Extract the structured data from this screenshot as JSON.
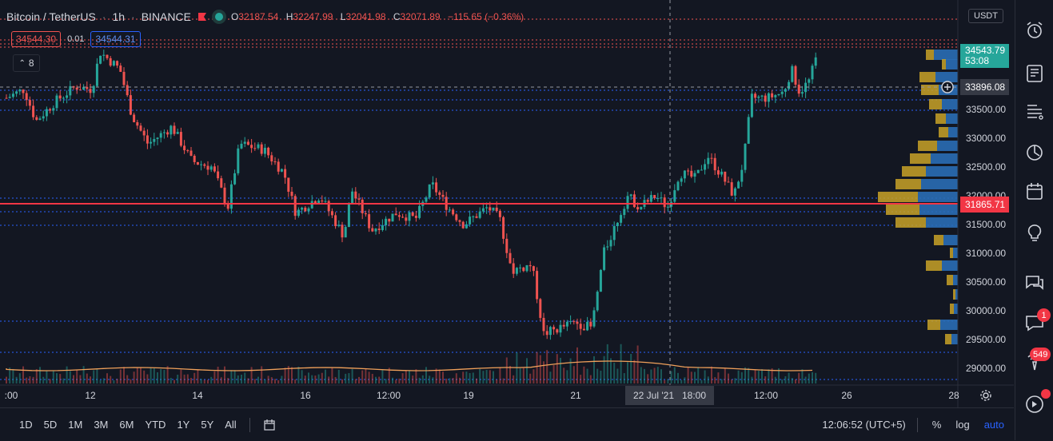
{
  "header": {
    "symbol": "Bitcoin / TetherUS",
    "interval": "1h",
    "exchange": "BINANCE",
    "ohlc": {
      "o_label": "O",
      "o": "32187.54",
      "h_label": "H",
      "h": "32247.99",
      "l_label": "L",
      "l": "32041.98",
      "c_label": "C",
      "c": "32071.89",
      "change": "−115.65 (−0.36%)"
    }
  },
  "order": {
    "sell": "34544.30",
    "spread": "0.01",
    "buy": "34544.31"
  },
  "indicators_collapsed": {
    "count": "8"
  },
  "currency": "USDT",
  "y_axis": {
    "ticks": [
      "33500.00",
      "33000.00",
      "32500.00",
      "32000.00",
      "31500.00",
      "31000.00",
      "30500.00",
      "30000.00",
      "29500.00",
      "29000.00"
    ],
    "current_price": "34543.79",
    "countdown": "53:08",
    "crosshair_price": "33896.08",
    "alert_price": "31865.71"
  },
  "x_axis": {
    "ticks": [
      ":00",
      "12",
      "14",
      "16",
      "12:00",
      "19",
      "21",
      "18:00",
      "12:00",
      "26",
      "28"
    ],
    "crosshair_date": "22 Jul '21"
  },
  "bottom_bar": {
    "ranges": [
      "1D",
      "5D",
      "1M",
      "3M",
      "6M",
      "YTD",
      "1Y",
      "5Y",
      "All"
    ],
    "time": "12:06:52 (UTC+5)",
    "percent": "%",
    "log": "log",
    "auto": "auto"
  },
  "right_sidebar": {
    "icons": [
      "alarm-clock-icon",
      "watchlist-icon",
      "news-icon",
      "hotlist-icon",
      "calendar-icon",
      "ideas-icon",
      "chat-icon",
      "notifications-icon",
      "streams-icon",
      "help-icon"
    ],
    "notification_count": "1",
    "streams_count": "549"
  },
  "colors": {
    "background": "#131722",
    "up": "#26a69a",
    "down": "#ef5350",
    "alert": "#f23645",
    "accent": "#2962ff",
    "volume_profile_up": "#2a6db5",
    "volume_profile_down": "#c9a227"
  }
}
